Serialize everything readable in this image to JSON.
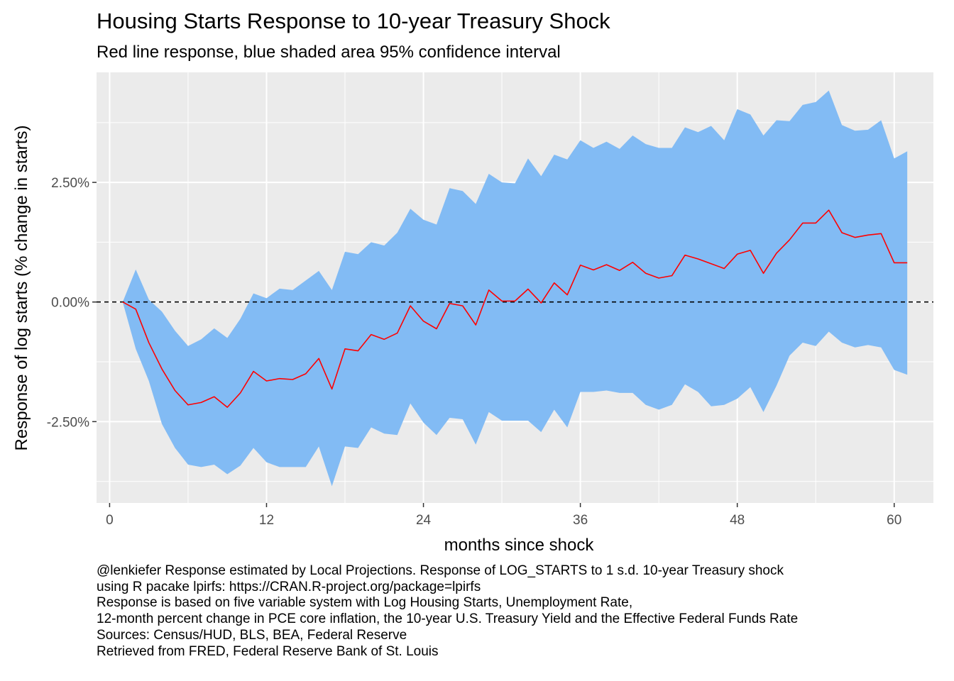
{
  "chart_data": {
    "type": "area",
    "title": "Housing Starts Response to 10-year Treasury Shock",
    "subtitle": "Red line response, blue shaded area 95% confidence interval",
    "xlabel": "months since shock",
    "ylabel": "Response of log starts (% change in starts)",
    "xlim": [
      -1,
      63
    ],
    "ylim": [
      -4.2,
      4.8
    ],
    "x_ticks": [
      0,
      12,
      24,
      36,
      48,
      60
    ],
    "x_tick_labels": [
      "0",
      "12",
      "24",
      "36",
      "48",
      "60"
    ],
    "y_ticks": [
      -2.5,
      0,
      2.5
    ],
    "y_tick_labels": [
      "-2.50%",
      "0.00%",
      "2.50%"
    ],
    "grid": true,
    "hline": {
      "y": 0,
      "style": "dashed"
    },
    "x": [
      1,
      2,
      3,
      4,
      5,
      6,
      7,
      8,
      9,
      10,
      11,
      12,
      13,
      14,
      15,
      16,
      17,
      18,
      19,
      20,
      21,
      22,
      23,
      24,
      25,
      26,
      27,
      28,
      29,
      30,
      31,
      32,
      33,
      34,
      35,
      36,
      37,
      38,
      39,
      40,
      41,
      42,
      43,
      44,
      45,
      46,
      47,
      48,
      49,
      50,
      51,
      52,
      53,
      54,
      55,
      56,
      57,
      58,
      59,
      60,
      61
    ],
    "series": [
      {
        "name": "response",
        "color": "#ff0000",
        "values": [
          0,
          -0.15,
          -0.85,
          -1.4,
          -1.85,
          -2.15,
          -2.1,
          -1.98,
          -2.2,
          -1.9,
          -1.45,
          -1.65,
          -1.6,
          -1.62,
          -1.5,
          -1.18,
          -1.82,
          -0.98,
          -1.02,
          -0.68,
          -0.78,
          -0.65,
          -0.08,
          -0.4,
          -0.56,
          -0.03,
          -0.08,
          -0.48,
          0.25,
          0.02,
          0.02,
          0.27,
          -0.02,
          0.4,
          0.15,
          0.77,
          0.67,
          0.78,
          0.66,
          0.83,
          0.6,
          0.5,
          0.55,
          0.98,
          0.9,
          0.8,
          0.7,
          1.0,
          1.08,
          0.6,
          1.02,
          1.3,
          1.65,
          1.65,
          1.92,
          1.45,
          1.35,
          1.4,
          1.43,
          0.82,
          0.82
        ]
      },
      {
        "name": "upper 95%",
        "color": "#82bbf4",
        "values": [
          0,
          0.68,
          0.05,
          -0.2,
          -0.6,
          -0.92,
          -0.78,
          -0.55,
          -0.75,
          -0.35,
          0.18,
          0.08,
          0.28,
          0.25,
          0.45,
          0.65,
          0.25,
          1.05,
          1.0,
          1.25,
          1.18,
          1.45,
          1.95,
          1.72,
          1.62,
          2.38,
          2.32,
          2.05,
          2.68,
          2.5,
          2.48,
          3.0,
          2.63,
          3.08,
          2.98,
          3.38,
          3.22,
          3.35,
          3.2,
          3.48,
          3.3,
          3.22,
          3.22,
          3.65,
          3.55,
          3.68,
          3.38,
          4.03,
          3.92,
          3.48,
          3.8,
          3.78,
          4.12,
          4.18,
          4.42,
          3.7,
          3.58,
          3.6,
          3.8,
          3.0,
          3.15
        ]
      },
      {
        "name": "lower 95%",
        "color": "#82bbf4",
        "values": [
          0,
          -0.98,
          -1.65,
          -2.55,
          -3.05,
          -3.4,
          -3.45,
          -3.4,
          -3.6,
          -3.42,
          -3.05,
          -3.35,
          -3.45,
          -3.45,
          -3.45,
          -3.02,
          -3.85,
          -3.02,
          -3.05,
          -2.62,
          -2.75,
          -2.78,
          -2.12,
          -2.52,
          -2.78,
          -2.42,
          -2.45,
          -2.98,
          -2.3,
          -2.48,
          -2.48,
          -2.48,
          -2.72,
          -2.25,
          -2.62,
          -1.88,
          -1.88,
          -1.85,
          -1.9,
          -1.9,
          -2.15,
          -2.25,
          -2.15,
          -1.72,
          -1.88,
          -2.18,
          -2.15,
          -2.02,
          -1.78,
          -2.3,
          -1.75,
          -1.12,
          -0.85,
          -0.92,
          -0.62,
          -0.85,
          -0.95,
          -0.9,
          -0.95,
          -1.42,
          -1.52
        ]
      }
    ],
    "colors": {
      "panel": "#ebebeb",
      "grid": "#ffffff",
      "band": "#82bbf4",
      "line": "#ff0000"
    }
  },
  "caption_lines": [
    "@lenkiefer Response estimated by Local Projections. Response of LOG_STARTS to 1 s.d. 10-year Treasury shock",
    "using R pacake lpirfs: https://CRAN.R-project.org/package=lpirfs",
    "Response is based on five variable system with Log Housing Starts, Unemployment Rate,",
    "12-month percent change in PCE core inflation, the 10-year U.S. Treasury Yield and the Effective Federal Funds Rate",
    "Sources: Census/HUD, BLS, BEA, Federal Reserve",
    "Retrieved from FRED, Federal Reserve Bank of St. Louis"
  ]
}
